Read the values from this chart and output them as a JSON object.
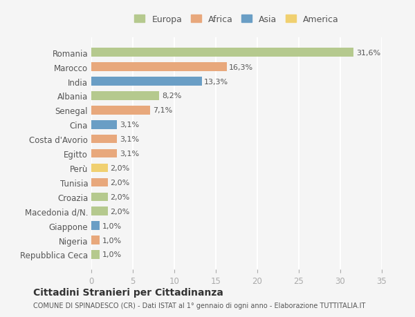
{
  "countries": [
    "Romania",
    "Marocco",
    "India",
    "Albania",
    "Senegal",
    "Cina",
    "Costa d'Avorio",
    "Egitto",
    "Perù",
    "Tunisia",
    "Croazia",
    "Macedonia d/N.",
    "Giappone",
    "Nigeria",
    "Repubblica Ceca"
  ],
  "values": [
    31.6,
    16.3,
    13.3,
    8.2,
    7.1,
    3.1,
    3.1,
    3.1,
    2.0,
    2.0,
    2.0,
    2.0,
    1.0,
    1.0,
    1.0
  ],
  "labels": [
    "31,6%",
    "16,3%",
    "13,3%",
    "8,2%",
    "7,1%",
    "3,1%",
    "3,1%",
    "3,1%",
    "2,0%",
    "2,0%",
    "2,0%",
    "2,0%",
    "1,0%",
    "1,0%",
    "1,0%"
  ],
  "continent": [
    "Europa",
    "Africa",
    "Asia",
    "Europa",
    "Africa",
    "Asia",
    "Africa",
    "Africa",
    "America",
    "Africa",
    "Europa",
    "Europa",
    "Asia",
    "Africa",
    "Europa"
  ],
  "colors": {
    "Europa": "#b5c98e",
    "Africa": "#e8a87c",
    "Asia": "#6a9ec5",
    "America": "#f0d070"
  },
  "legend_order": [
    "Europa",
    "Africa",
    "Asia",
    "America"
  ],
  "title": "Cittadini Stranieri per Cittadinanza",
  "subtitle": "COMUNE DI SPINADESCO (CR) - Dati ISTAT al 1° gennaio di ogni anno - Elaborazione TUTTITALIA.IT",
  "xlim": [
    0,
    35
  ],
  "xticks": [
    0,
    5,
    10,
    15,
    20,
    25,
    30,
    35
  ],
  "background_color": "#f5f5f5",
  "grid_color": "#ffffff",
  "bar_height": 0.6
}
